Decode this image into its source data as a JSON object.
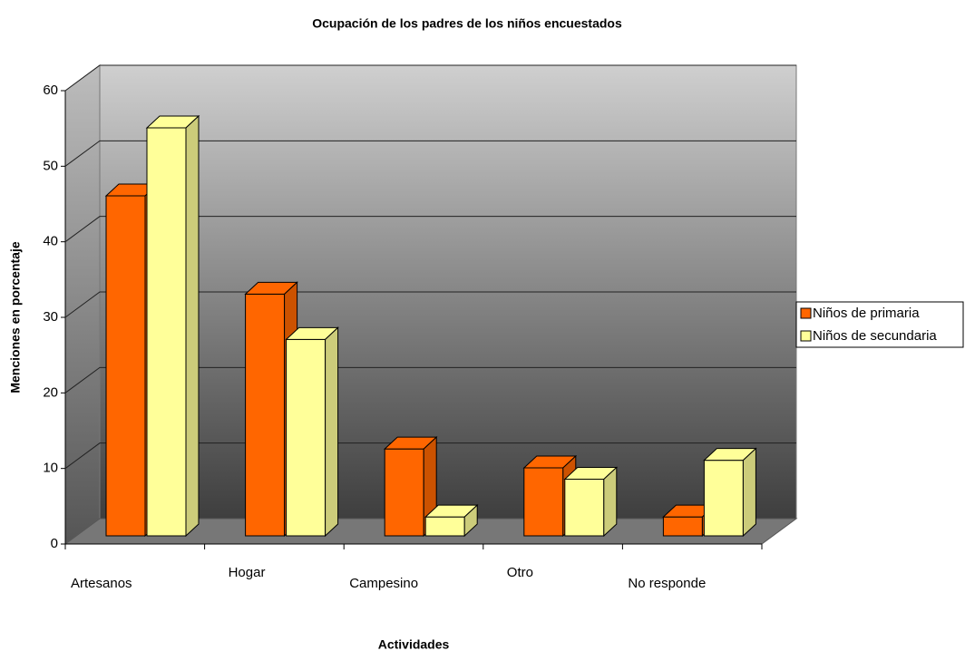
{
  "chart_data": {
    "type": "bar3d",
    "title": "Ocupación de los padres de los niños encuestados",
    "x_label": "Actividades",
    "y_label": "Menciones en porcentaje",
    "categories": [
      "Artesanos",
      "Hogar",
      "Campesino",
      "Otro",
      "No responde"
    ],
    "series": [
      {
        "name": "Niños de primaria",
        "color": "#ff6600",
        "values": [
          45,
          32,
          11.5,
          9,
          2.5
        ]
      },
      {
        "name": "Niños de secundaria",
        "color": "#ffff99",
        "values": [
          54,
          26,
          2.5,
          7.5,
          10
        ]
      }
    ],
    "ylim": [
      0,
      60
    ],
    "yticks": [
      0,
      10,
      20,
      30,
      40,
      50,
      60
    ],
    "grid": true,
    "legend": "right"
  }
}
